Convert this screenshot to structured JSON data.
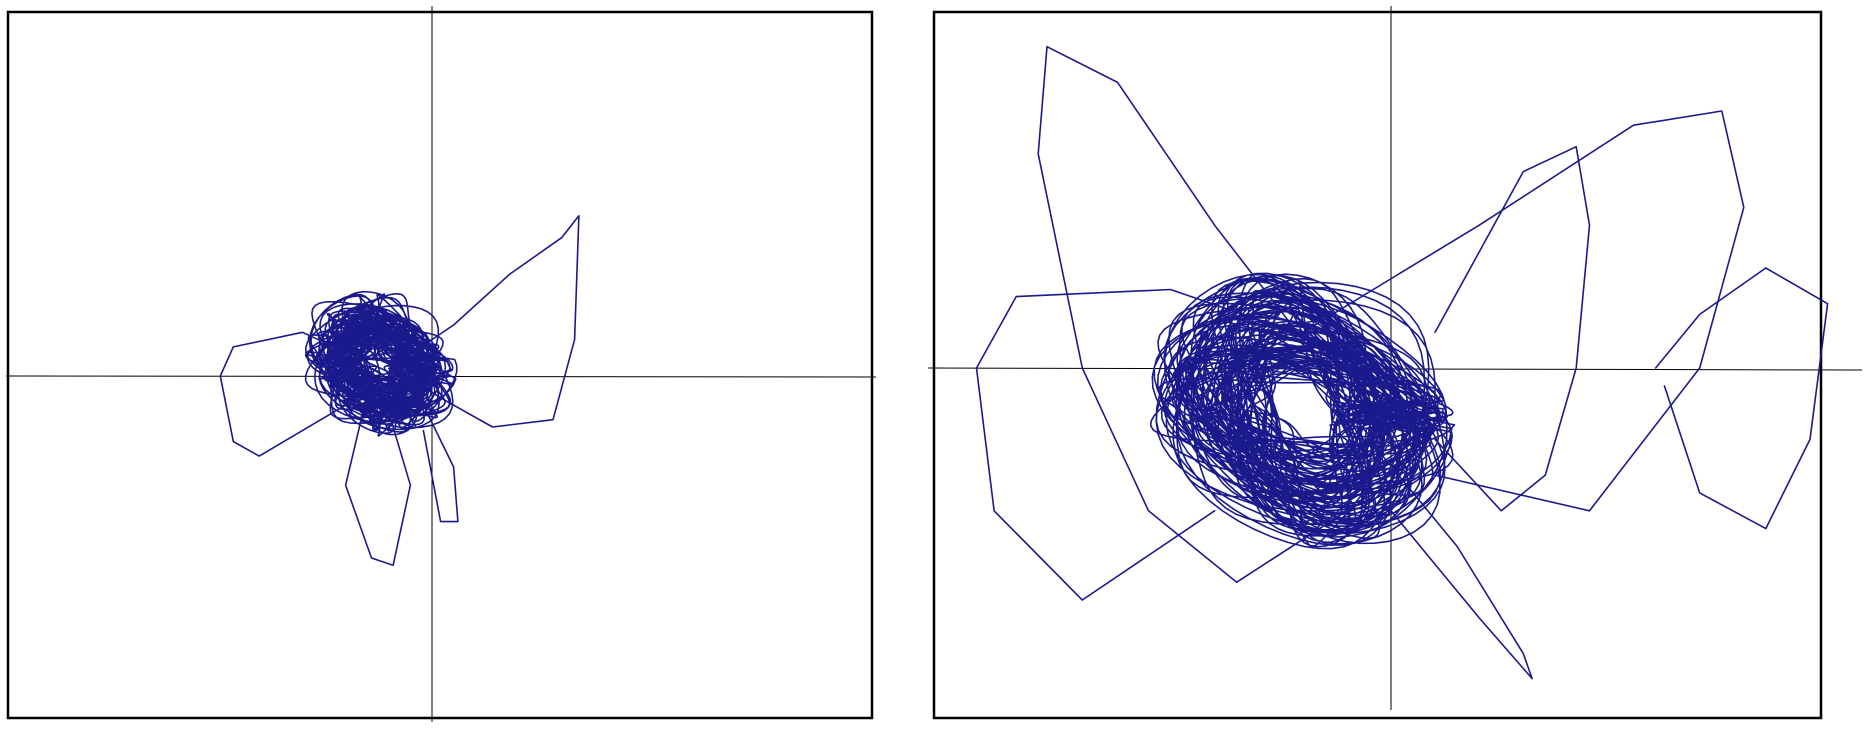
{
  "chart_data": [
    {
      "type": "line",
      "panel": "left",
      "title": "",
      "xlabel": "",
      "ylabel": "",
      "grid": false,
      "legend": "none",
      "xlim": [
        -1,
        1
      ],
      "ylim": [
        -1,
        1
      ],
      "line_color": "#1a1a8c",
      "axis_color": "#000000",
      "series": [
        {
          "color": "#1a1a8c",
          "cluster_center": [
            -0.12,
            0.03
          ],
          "cluster_spread": [
            0.13,
            0.14
          ],
          "x_extent": [
            -0.49,
            0.35
          ],
          "y_extent": [
            -0.52,
            0.44
          ],
          "loops": 90,
          "seed": 11,
          "excursions": [
            {
              "x": [
                -0.1,
                0.05,
                0.18,
                0.3,
                0.34,
                0.33,
                0.28,
                0.14,
                0.02,
                -0.06
              ],
              "y": [
                0.02,
                0.14,
                0.28,
                0.38,
                0.44,
                0.1,
                -0.12,
                -0.14,
                -0.06,
                0.0
              ]
            },
            {
              "x": [
                -0.15,
                -0.2,
                -0.14,
                -0.09,
                -0.05,
                -0.1
              ],
              "y": [
                -0.05,
                -0.3,
                -0.5,
                -0.52,
                -0.3,
                -0.1
              ]
            },
            {
              "x": [
                -0.08,
                -0.3,
                -0.46,
                -0.49,
                -0.46,
                -0.4,
                -0.2,
                -0.1
              ],
              "y": [
                0.0,
                0.12,
                0.08,
                0.0,
                -0.18,
                -0.22,
                -0.08,
                0.0
              ]
            },
            {
              "x": [
                -0.02,
                0.05,
                0.06,
                0.02,
                -0.02
              ],
              "y": [
                -0.08,
                -0.25,
                -0.4,
                -0.4,
                -0.15
              ]
            }
          ]
        }
      ]
    },
    {
      "type": "line",
      "panel": "right",
      "title": "",
      "xlabel": "",
      "ylabel": "",
      "grid": false,
      "legend": "none",
      "xlim": [
        -1,
        1
      ],
      "ylim": [
        -1,
        1
      ],
      "line_color": "#1a1a8c",
      "axis_color": "#000000",
      "series": [
        {
          "color": "#1a1a8c",
          "cluster_center": [
            -0.2,
            -0.12
          ],
          "cluster_spread": [
            0.26,
            0.3
          ],
          "x_extent": [
            -0.94,
            0.99
          ],
          "y_extent": [
            -0.87,
            0.9
          ],
          "loops": 110,
          "seed": 29,
          "excursions": [
            {
              "x": [
                -0.15,
                -0.4,
                -0.62,
                -0.78,
                -0.8,
                -0.7,
                -0.55,
                -0.35,
                -0.1
              ],
              "y": [
                0.0,
                0.4,
                0.8,
                0.9,
                0.6,
                0.0,
                -0.4,
                -0.6,
                -0.4
              ]
            },
            {
              "x": [
                0.1,
                0.3,
                0.42,
                0.45,
                0.42,
                0.35,
                0.25,
                0.1
              ],
              "y": [
                0.1,
                0.55,
                0.62,
                0.4,
                0.0,
                -0.3,
                -0.4,
                -0.2
              ]
            },
            {
              "x": [
                0.6,
                0.7,
                0.85,
                0.99,
                0.95,
                0.85,
                0.7,
                0.62
              ],
              "y": [
                0.0,
                0.15,
                0.28,
                0.18,
                -0.2,
                -0.45,
                -0.35,
                -0.05
              ]
            },
            {
              "x": [
                -0.1,
                -0.5,
                -0.85,
                -0.94,
                -0.9,
                -0.7,
                -0.4
              ],
              "y": [
                0.05,
                0.22,
                0.2,
                0.0,
                -0.4,
                -0.65,
                -0.4
              ]
            },
            {
              "x": [
                -0.05,
                0.15,
                0.3,
                0.32,
                0.2,
                0.0
              ],
              "y": [
                -0.2,
                -0.5,
                -0.8,
                -0.87,
                -0.7,
                -0.4
              ]
            },
            {
              "x": [
                -0.2,
                0.2,
                0.55,
                0.75,
                0.8,
                0.7,
                0.45,
                0.1
              ],
              "y": [
                0.1,
                0.4,
                0.68,
                0.72,
                0.45,
                0.0,
                -0.4,
                -0.3
              ]
            }
          ]
        }
      ]
    }
  ]
}
